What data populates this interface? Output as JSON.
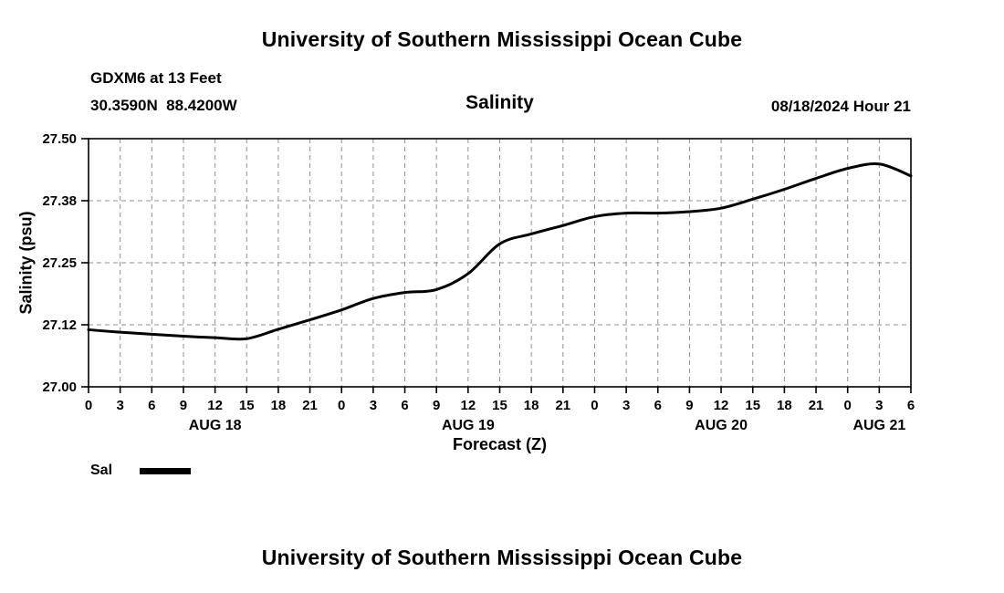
{
  "header": {
    "title": "University of Southern Mississippi Ocean Cube",
    "station": "GDXM6 at 13 Feet",
    "coords": "30.3590N  88.4200W",
    "chart_title": "Salinity",
    "timestamp": "08/18/2024 Hour 21"
  },
  "footer": {
    "title": "University of Southern Mississippi Ocean Cube"
  },
  "legend": {
    "label": "Sal",
    "line_color": "#000000"
  },
  "chart_data": {
    "type": "line",
    "title": "Salinity",
    "xlabel": "Forecast (Z)",
    "ylabel": "Salinity (psu)",
    "ylim": [
      27.0,
      27.5
    ],
    "xlim_hours": [
      0,
      78
    ],
    "grid": "dashed",
    "grid_color": "#8f8f8f",
    "line_color": "#000000",
    "y_ticks": [
      {
        "label": "27.00",
        "value": 27.0
      },
      {
        "label": "27.12",
        "value": 27.125
      },
      {
        "label": "27.25",
        "value": 27.25
      },
      {
        "label": "27.38",
        "value": 27.375
      },
      {
        "label": "27.50",
        "value": 27.5
      }
    ],
    "x_ticks": [
      {
        "hour": 0,
        "label": "0"
      },
      {
        "hour": 3,
        "label": "3"
      },
      {
        "hour": 6,
        "label": "6"
      },
      {
        "hour": 9,
        "label": "9"
      },
      {
        "hour": 12,
        "label": "12"
      },
      {
        "hour": 15,
        "label": "15"
      },
      {
        "hour": 18,
        "label": "18"
      },
      {
        "hour": 21,
        "label": "21"
      },
      {
        "hour": 24,
        "label": "0"
      },
      {
        "hour": 27,
        "label": "3"
      },
      {
        "hour": 30,
        "label": "6"
      },
      {
        "hour": 33,
        "label": "9"
      },
      {
        "hour": 36,
        "label": "12"
      },
      {
        "hour": 39,
        "label": "15"
      },
      {
        "hour": 42,
        "label": "18"
      },
      {
        "hour": 45,
        "label": "21"
      },
      {
        "hour": 48,
        "label": "0"
      },
      {
        "hour": 51,
        "label": "3"
      },
      {
        "hour": 54,
        "label": "6"
      },
      {
        "hour": 57,
        "label": "9"
      },
      {
        "hour": 60,
        "label": "12"
      },
      {
        "hour": 63,
        "label": "15"
      },
      {
        "hour": 66,
        "label": "18"
      },
      {
        "hour": 69,
        "label": "21"
      },
      {
        "hour": 72,
        "label": "0"
      },
      {
        "hour": 75,
        "label": "3"
      },
      {
        "hour": 78,
        "label": "6"
      }
    ],
    "day_labels": [
      {
        "label": "AUG 18",
        "hour": 12
      },
      {
        "label": "AUG 19",
        "hour": 36
      },
      {
        "label": "AUG 20",
        "hour": 60
      },
      {
        "label": "AUG 21",
        "hour": 75
      }
    ],
    "series": [
      {
        "name": "Sal",
        "color": "#000000",
        "x_hours": [
          0,
          3,
          6,
          9,
          12,
          15,
          18,
          21,
          24,
          27,
          30,
          33,
          36,
          39,
          42,
          45,
          48,
          51,
          54,
          57,
          60,
          63,
          66,
          69,
          72,
          75,
          78
        ],
        "values": [
          27.115,
          27.11,
          27.106,
          27.102,
          27.099,
          27.097,
          27.116,
          27.135,
          27.155,
          27.178,
          27.19,
          27.196,
          27.228,
          27.288,
          27.308,
          27.325,
          27.343,
          27.35,
          27.35,
          27.353,
          27.36,
          27.378,
          27.398,
          27.42,
          27.44,
          27.449,
          27.425
        ]
      }
    ]
  }
}
